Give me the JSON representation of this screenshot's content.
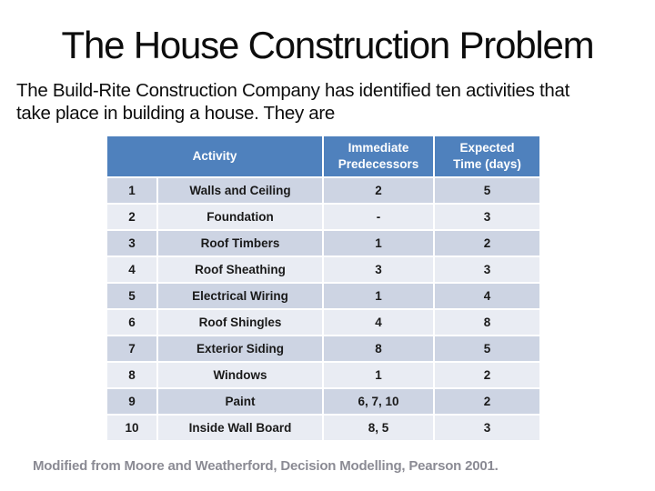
{
  "slide": {
    "title": "The House Construction Problem",
    "intro_lines": [
      "The Build-Rite Construction Company has identified ten activities that",
      "take place in building a house. They are"
    ],
    "footer": "Modified from Moore and Weatherford, Decision Modelling, Pearson 2001."
  },
  "table": {
    "header_activity": "Activity",
    "header_predecessors": "Immediate\nPredecessors",
    "header_time": "Expected\nTime (days)",
    "rows": [
      {
        "num": "1",
        "activity": "Walls and Ceiling",
        "predecessors": "2",
        "time": "5"
      },
      {
        "num": "2",
        "activity": "Foundation",
        "predecessors": "-",
        "time": "3"
      },
      {
        "num": "3",
        "activity": "Roof Timbers",
        "predecessors": "1",
        "time": "2"
      },
      {
        "num": "4",
        "activity": "Roof Sheathing",
        "predecessors": "3",
        "time": "3"
      },
      {
        "num": "5",
        "activity": "Electrical Wiring",
        "predecessors": "1",
        "time": "4"
      },
      {
        "num": "6",
        "activity": "Roof Shingles",
        "predecessors": "4",
        "time": "8"
      },
      {
        "num": "7",
        "activity": "Exterior Siding",
        "predecessors": "8",
        "time": "5"
      },
      {
        "num": "8",
        "activity": "Windows",
        "predecessors": "1",
        "time": "2"
      },
      {
        "num": "9",
        "activity": "Paint",
        "predecessors": "6, 7, 10",
        "time": "2"
      },
      {
        "num": "10",
        "activity": "Inside Wall Board",
        "predecessors": "8, 5",
        "time": "3"
      }
    ]
  },
  "colors": {
    "header_bg": "#4f81bd",
    "row_odd_bg": "#cdd4e3",
    "row_even_bg": "#e9ecf3",
    "footer_text": "#8b8b94"
  }
}
